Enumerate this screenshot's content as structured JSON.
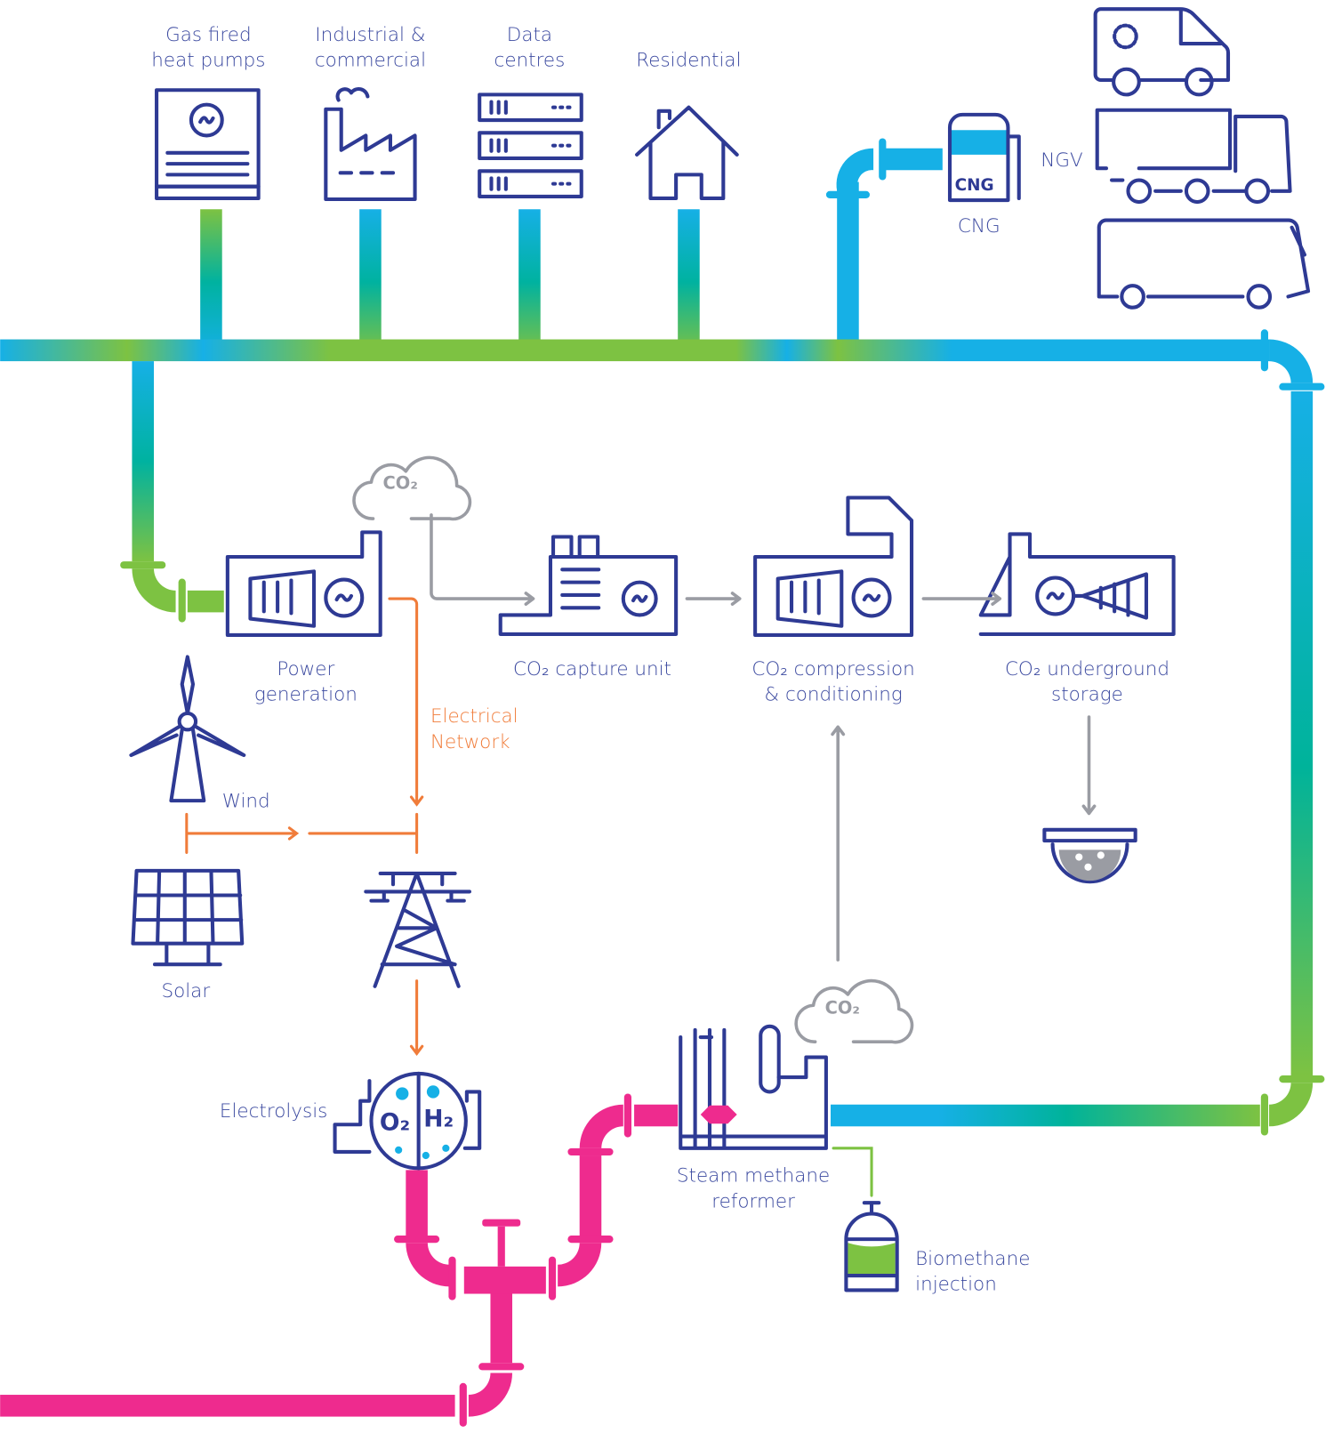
{
  "consumers": [
    {
      "lines": [
        "Gas fired",
        "heat pumps"
      ]
    },
    {
      "lines": [
        "Industrial &",
        "commercial"
      ]
    },
    {
      "lines": [
        "Data",
        "centres"
      ]
    },
    {
      "lines": [
        "Residential"
      ]
    }
  ],
  "cng": {
    "tank_label": "CNG",
    "label": "CNG"
  },
  "ngv": "NGV",
  "clouds": [
    "CO₂",
    "CO₂"
  ],
  "process": {
    "power": [
      "Power",
      "generation"
    ],
    "capture": [
      "CO₂ capture unit"
    ],
    "compression": [
      "CO₂ compression",
      "& conditioning"
    ],
    "storage": [
      "CO₂ underground",
      "storage"
    ]
  },
  "electrical_network": [
    "Electrical",
    "Network"
  ],
  "wind": "Wind",
  "solar": "Solar",
  "electrolysis": "Electrolysis",
  "electrolyser": {
    "o2": "O₂",
    "h2": "H₂"
  },
  "reformer": [
    "Steam methane",
    "reformer"
  ],
  "biomethane": [
    "Biomethane",
    "injection"
  ]
}
